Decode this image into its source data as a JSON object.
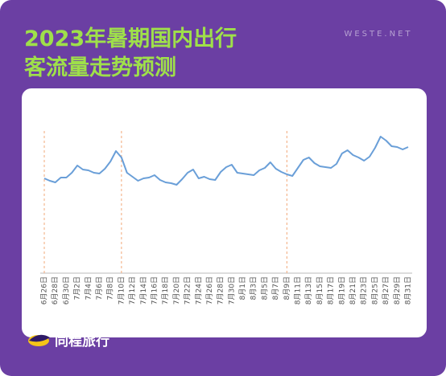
{
  "title_lines": [
    "2023年暑期国内出行",
    "客流量走势预测"
  ],
  "watermark": "WESTE.NET",
  "brand": "同程旅行",
  "chart_data": {
    "type": "line",
    "categories": [
      "6月26日",
      null,
      "6月28日",
      null,
      "6月30日",
      null,
      "7月2日",
      null,
      "7月4日",
      null,
      "7月6日",
      null,
      "7月8日",
      null,
      "7月10日",
      null,
      "7月12日",
      null,
      "7月14日",
      null,
      "7月16日",
      null,
      "7月18日",
      null,
      "7月20日",
      null,
      "7月22日",
      null,
      "7月24日",
      null,
      "7月26日",
      null,
      "7月28日",
      null,
      "7月30日",
      null,
      "8月1日",
      null,
      "8月3日",
      null,
      "8月5日",
      null,
      "8月7日",
      null,
      "8月9日",
      null,
      "8月11日",
      null,
      "8月13日",
      null,
      "8月15日",
      null,
      "8月17日",
      null,
      "8月19日",
      null,
      "8月21日",
      null,
      "8月23日",
      null,
      "8月25日",
      null,
      "8月27日",
      null,
      "8月29日",
      null,
      "8月31日"
    ],
    "values": [
      118,
      115,
      113,
      119,
      119,
      125,
      134,
      129,
      128,
      125,
      124,
      130,
      139,
      152,
      144,
      125,
      120,
      115,
      118,
      119,
      122,
      116,
      113,
      112,
      110,
      117,
      125,
      129,
      118,
      120,
      117,
      116,
      126,
      132,
      135,
      125,
      124,
      123,
      122,
      128,
      131,
      138,
      130,
      126,
      123,
      121,
      131,
      141,
      144,
      137,
      133,
      132,
      131,
      136,
      149,
      153,
      147,
      144,
      140,
      145,
      156,
      170,
      165,
      158,
      157,
      154,
      157
    ],
    "color": "#6a9fd8",
    "ylim": [
      0,
      230
    ],
    "highlight_dates": [
      "6月26日",
      "7月10日",
      "8月9日"
    ],
    "highlight_color": "#f2a878"
  }
}
